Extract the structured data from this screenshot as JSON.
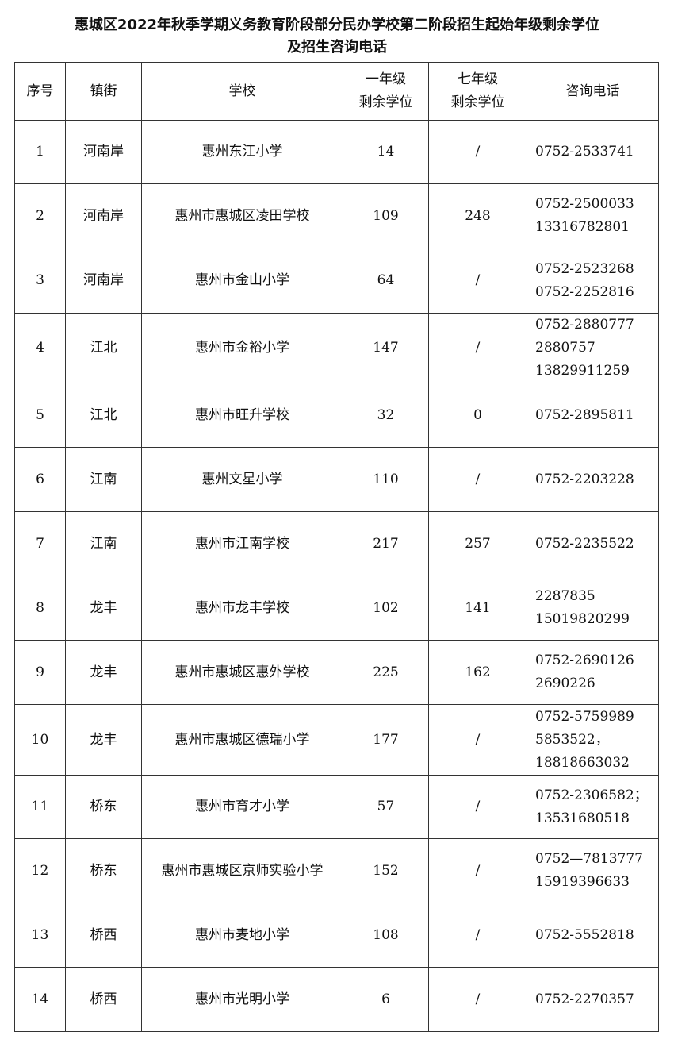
{
  "title_line1": "惠城区2022年秋季学期义务教育阶段部分民办学校第二阶段招生起始年级剩余学位",
  "title_line2": "及招生咨询电话",
  "headers": {
    "no": "序号",
    "street": "镇街",
    "school": "学校",
    "grade1_line1": "一年级",
    "grade1_line2": "剩余学位",
    "grade7_line1": "七年级",
    "grade7_line2": "剩余学位",
    "phone": "咨询电话"
  },
  "rows": [
    {
      "no": "1",
      "street": "河南岸",
      "school": "惠州东江小学",
      "g1": "14",
      "g7": "/",
      "phones": [
        "0752-2533741"
      ]
    },
    {
      "no": "2",
      "street": "河南岸",
      "school": "惠州市惠城区凌田学校",
      "g1": "109",
      "g7": "248",
      "phones": [
        "0752-2500033",
        "13316782801"
      ]
    },
    {
      "no": "3",
      "street": "河南岸",
      "school": "惠州市金山小学",
      "g1": "64",
      "g7": "/",
      "phones": [
        "0752-2523268",
        "0752-2252816"
      ]
    },
    {
      "no": "4",
      "street": "江北",
      "school": "惠州市金裕小学",
      "g1": "147",
      "g7": "/",
      "phones": [
        "0752-2880777",
        "2880757",
        "13829911259"
      ]
    },
    {
      "no": "5",
      "street": "江北",
      "school": "惠州市旺升学校",
      "g1": "32",
      "g7": "0",
      "phones": [
        "0752-2895811"
      ]
    },
    {
      "no": "6",
      "street": "江南",
      "school": "惠州文星小学",
      "g1": "110",
      "g7": "/",
      "phones": [
        "0752-2203228"
      ]
    },
    {
      "no": "7",
      "street": "江南",
      "school": "惠州市江南学校",
      "g1": "217",
      "g7": "257",
      "phones": [
        "0752-2235522"
      ]
    },
    {
      "no": "8",
      "street": "龙丰",
      "school": "惠州市龙丰学校",
      "g1": "102",
      "g7": "141",
      "phones": [
        "2287835",
        "15019820299"
      ]
    },
    {
      "no": "9",
      "street": "龙丰",
      "school": "惠州市惠城区惠外学校",
      "g1": "225",
      "g7": "162",
      "phones": [
        "0752-2690126",
        "2690226"
      ]
    },
    {
      "no": "10",
      "street": "龙丰",
      "school": "惠州市惠城区德瑞小学",
      "g1": "177",
      "g7": "/",
      "phones": [
        "0752-5759989",
        "5853522，",
        "18818663032"
      ]
    },
    {
      "no": "11",
      "street": "桥东",
      "school": "惠州市育才小学",
      "g1": "57",
      "g7": "/",
      "phones": [
        "0752-2306582；",
        "13531680518"
      ]
    },
    {
      "no": "12",
      "street": "桥东",
      "school": "惠州市惠城区京师实验小学",
      "g1": "152",
      "g7": "/",
      "phones": [
        "0752—7813777",
        "15919396633"
      ]
    },
    {
      "no": "13",
      "street": "桥西",
      "school": "惠州市麦地小学",
      "g1": "108",
      "g7": "/",
      "phones": [
        "0752-5552818"
      ]
    },
    {
      "no": "14",
      "street": "桥西",
      "school": "惠州市光明小学",
      "g1": "6",
      "g7": "/",
      "phones": [
        "0752-2270357"
      ]
    }
  ]
}
